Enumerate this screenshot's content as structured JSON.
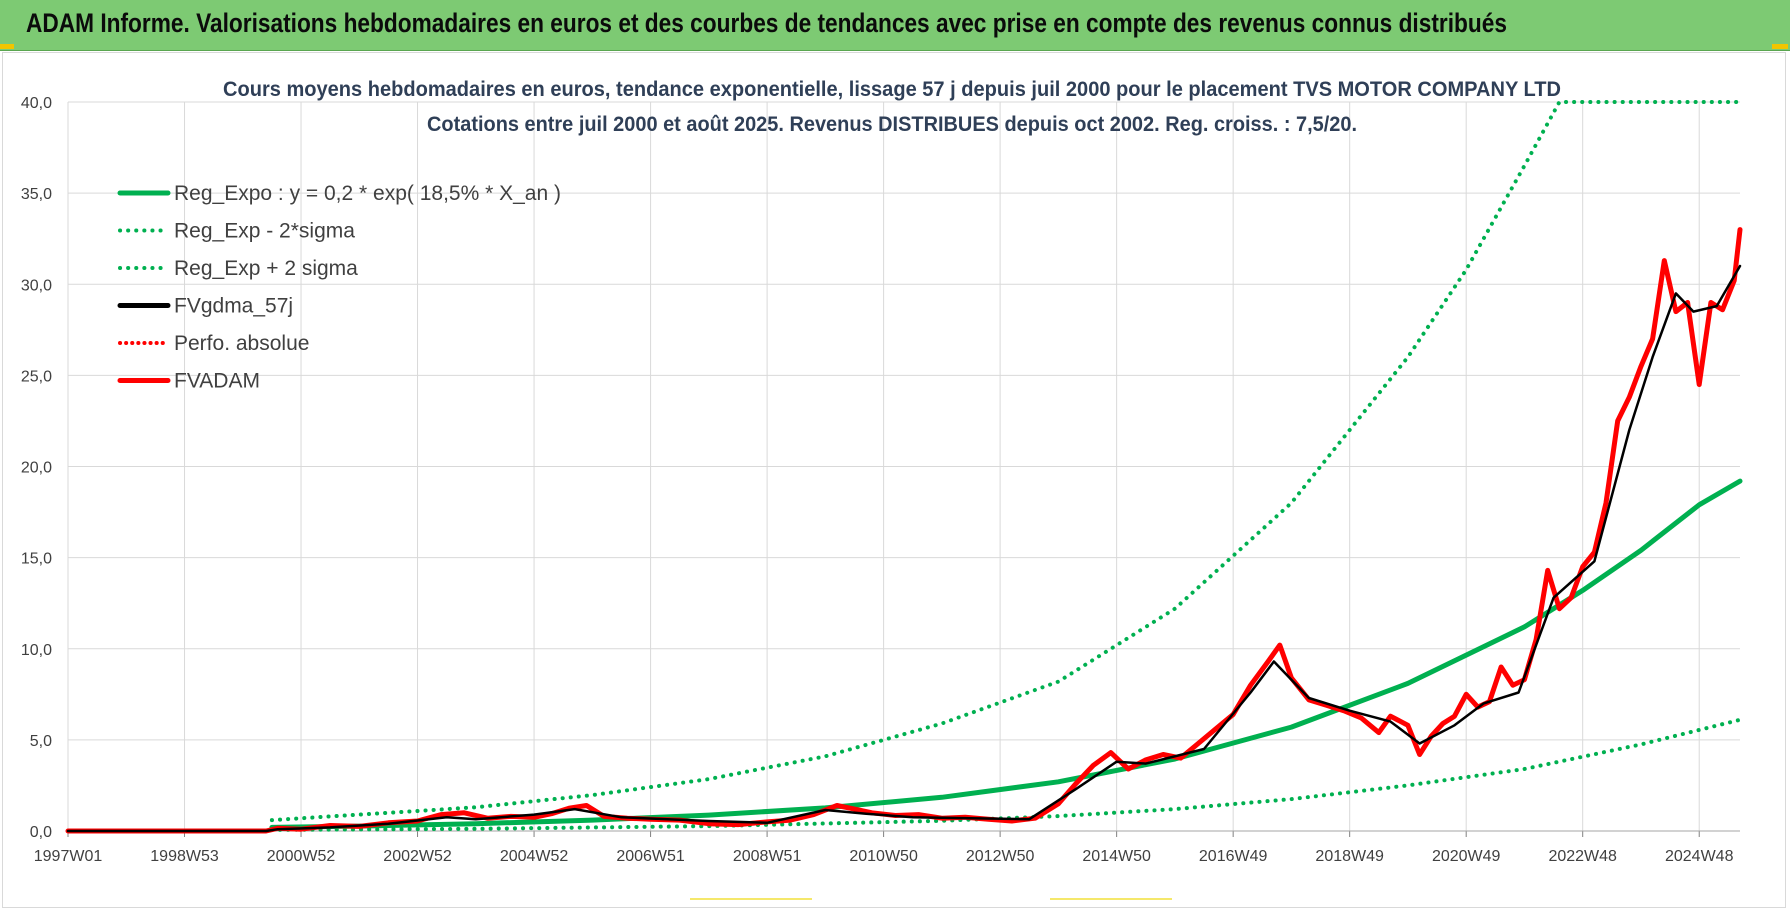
{
  "header": {
    "title": "ADAM Informe. Valorisations hebdomadaires en euros et des courbes de tendances avec prise en compte des revenus connus distribués"
  },
  "chart_data": {
    "type": "line",
    "title": "Cours moyens hebdomadaires en euros, tendance exponentielle, lissage 57 j depuis juil 2000 pour le placement TVS MOTOR COMPANY LTD",
    "subtitle": "Cotations entre juil 2000 et août 2025. Revenus DISTRIBUES depuis oct 2002. Reg. croiss. : 7,5/20.",
    "xlabel": "",
    "ylabel": "",
    "x_ticks": [
      "1997W01",
      "1998W53",
      "2000W52",
      "2002W52",
      "2004W52",
      "2006W51",
      "2008W51",
      "2010W50",
      "2012W50",
      "2014W50",
      "2016W49",
      "2018W49",
      "2020W49",
      "2022W48",
      "2024W48"
    ],
    "x_tick_years": [
      1997.0,
      1999.0,
      2001.0,
      2003.0,
      2005.0,
      2007.0,
      2009.0,
      2011.0,
      2013.0,
      2015.0,
      2017.0,
      2019.0,
      2021.0,
      2023.0,
      2025.0
    ],
    "x_range": [
      1997.0,
      2025.7
    ],
    "y_ticks": [
      "0,0",
      "5,0",
      "10,0",
      "15,0",
      "20,0",
      "25,0",
      "30,0",
      "35,0",
      "40,0"
    ],
    "ylim": [
      0,
      40
    ],
    "grid": true,
    "legend_position": "top-left",
    "series": [
      {
        "name": "Reg_Expo : y = 0,2 * exp( 18,5% *  X_an )",
        "color": "#00b050",
        "style": "solid",
        "x": [
          2000.5,
          2002,
          2004,
          2006,
          2008,
          2010,
          2012,
          2014,
          2016,
          2018,
          2020,
          2022,
          2023,
          2024,
          2025,
          2025.7
        ],
        "y": [
          0.2,
          0.27,
          0.4,
          0.6,
          0.87,
          1.27,
          1.85,
          2.7,
          3.95,
          5.7,
          8.1,
          11.2,
          13.2,
          15.4,
          17.9,
          19.2
        ]
      },
      {
        "name": "Reg_Exp - 2*sigma",
        "color": "#00b050",
        "style": "dotted",
        "x": [
          2000.5,
          2004,
          2008,
          2012,
          2014,
          2016,
          2018,
          2020,
          2022,
          2024,
          2025.7
        ],
        "y": [
          0.06,
          0.12,
          0.27,
          0.56,
          0.82,
          1.2,
          1.75,
          2.5,
          3.4,
          4.75,
          6.1
        ]
      },
      {
        "name": "Reg_Exp + 2 sigma",
        "color": "#00b050",
        "style": "dotted",
        "x": [
          2000.5,
          2004,
          2006,
          2008,
          2010,
          2012,
          2014,
          2016,
          2018,
          2020,
          2021,
          2022,
          2022.6,
          2023.3,
          2025.7
        ],
        "y": [
          0.6,
          1.3,
          1.97,
          2.85,
          4.1,
          5.9,
          8.2,
          12.2,
          18.0,
          26.0,
          30.8,
          36.5,
          40.0,
          40.0,
          40.0
        ]
      },
      {
        "name": "FVgdma_57j",
        "color": "#000000",
        "style": "solid",
        "x": [
          1997.0,
          2000.4,
          2000.6,
          2001.5,
          2002.5,
          2003.5,
          2004.0,
          2005.0,
          2005.7,
          2006.5,
          2008.0,
          2009.0,
          2010.0,
          2010.7,
          2011.5,
          2012.5,
          2013.5,
          2014.3,
          2015.0,
          2015.5,
          2016.5,
          2017.3,
          2017.7,
          2018.3,
          2019.0,
          2019.7,
          2020.2,
          2020.8,
          2021.3,
          2021.9,
          2022.5,
          2023.2,
          2023.8,
          2024.2,
          2024.6,
          2024.9,
          2025.3,
          2025.7
        ],
        "y": [
          0.0,
          0.0,
          0.1,
          0.2,
          0.4,
          0.75,
          0.65,
          0.9,
          1.2,
          0.75,
          0.55,
          0.45,
          1.15,
          0.95,
          0.75,
          0.7,
          0.65,
          2.3,
          3.8,
          3.7,
          4.5,
          7.6,
          9.3,
          7.3,
          6.6,
          6.0,
          4.8,
          5.8,
          7.0,
          7.6,
          12.8,
          14.8,
          22.0,
          26.0,
          29.5,
          28.5,
          28.8,
          31.0
        ]
      },
      {
        "name": "Perfo. absolue",
        "color": "#ff0000",
        "style": "dotted",
        "x": [
          1997.0,
          2000.4
        ],
        "y": [
          0.0,
          0.0
        ]
      },
      {
        "name": "FVADAM",
        "color": "#ff0000",
        "style": "solid",
        "x": [
          1997.0,
          2000.4,
          2000.6,
          2001.0,
          2001.5,
          2002.0,
          2002.5,
          2003.0,
          2003.4,
          2003.8,
          2004.2,
          2004.6,
          2005.0,
          2005.3,
          2005.6,
          2005.9,
          2006.2,
          2006.6,
          2007.0,
          2007.5,
          2008.0,
          2008.5,
          2009.0,
          2009.4,
          2009.8,
          2010.2,
          2010.5,
          2010.8,
          2011.2,
          2011.6,
          2012.0,
          2012.4,
          2012.8,
          2013.2,
          2013.6,
          2014.0,
          2014.3,
          2014.6,
          2014.9,
          2015.2,
          2015.5,
          2015.8,
          2016.1,
          2016.4,
          2016.7,
          2017.0,
          2017.3,
          2017.6,
          2017.8,
          2018.0,
          2018.3,
          2018.6,
          2018.9,
          2019.2,
          2019.5,
          2019.7,
          2020.0,
          2020.2,
          2020.4,
          2020.6,
          2020.8,
          2021.0,
          2021.2,
          2021.4,
          2021.6,
          2021.8,
          2022.0,
          2022.2,
          2022.4,
          2022.6,
          2022.8,
          2023.0,
          2023.2,
          2023.4,
          2023.6,
          2023.8,
          2024.0,
          2024.2,
          2024.4,
          2024.6,
          2024.8,
          2025.0,
          2025.2,
          2025.4,
          2025.6,
          2025.7
        ],
        "y": [
          0.0,
          0.0,
          0.15,
          0.1,
          0.3,
          0.25,
          0.45,
          0.55,
          0.9,
          1.0,
          0.7,
          0.8,
          0.75,
          0.95,
          1.25,
          1.4,
          0.8,
          0.7,
          0.65,
          0.6,
          0.4,
          0.35,
          0.5,
          0.6,
          0.9,
          1.4,
          1.2,
          1.0,
          0.85,
          0.9,
          0.7,
          0.75,
          0.65,
          0.55,
          0.7,
          1.5,
          2.6,
          3.6,
          4.3,
          3.4,
          3.9,
          4.2,
          4.0,
          4.8,
          5.6,
          6.4,
          8.0,
          9.3,
          10.2,
          8.4,
          7.2,
          6.9,
          6.6,
          6.2,
          5.4,
          6.3,
          5.8,
          4.2,
          5.2,
          5.9,
          6.3,
          7.5,
          6.8,
          7.1,
          9.0,
          8.0,
          8.3,
          10.5,
          14.3,
          12.2,
          12.8,
          14.5,
          15.3,
          18.0,
          22.5,
          23.8,
          25.5,
          27.0,
          31.3,
          28.5,
          29.0,
          24.5,
          29.0,
          28.6,
          30.2,
          33.0
        ]
      }
    ]
  }
}
